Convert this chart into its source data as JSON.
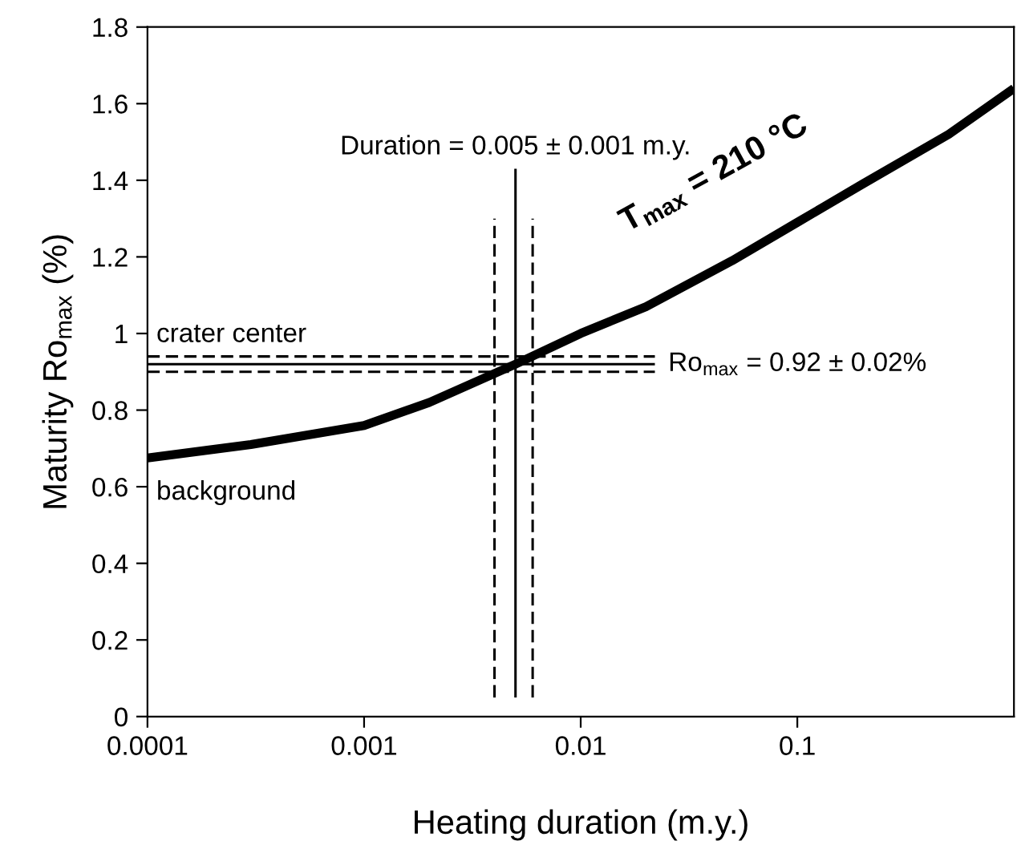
{
  "chart_data": {
    "type": "line",
    "xlabel": "Heating duration (m.y.)",
    "ylabel": "Maturity Ro$_{max}$ (%)",
    "log": "x",
    "xlim": [
      0.0001,
      1
    ],
    "xticks": [
      0.0001,
      0.001,
      0.01,
      0.1
    ],
    "ylim": [
      0,
      1.8
    ],
    "yticks": [
      0,
      0.2,
      0.4,
      0.6,
      0.8,
      1,
      1.2,
      1.4,
      1.6,
      1.8
    ],
    "grid": false,
    "marker": "none",
    "series": [
      {
        "color": "#000000",
        "line_style": "solid",
        "x": [
          0.0001,
          0.0003,
          0.001,
          0.002,
          0.005,
          0.01,
          0.02,
          0.05,
          0.1,
          0.2,
          0.5,
          1
        ],
        "values": [
          0.675,
          0.71,
          0.76,
          0.82,
          0.92,
          1.0,
          1.07,
          1.19,
          1.29,
          1.39,
          1.52,
          1.64
        ]
      },
      {
        "color": "#000000",
        "line_style": "dashed",
        "x": [
          0.004,
          0.004
        ],
        "values": [
          0.05,
          1.3
        ]
      },
      {
        "color": "#000000",
        "line_style": "solid",
        "x": [
          0.005,
          0.005
        ],
        "values": [
          0.05,
          1.43
        ]
      },
      {
        "color": "#000000",
        "line_style": "dashed",
        "x": [
          0.006,
          0.006
        ],
        "values": [
          0.05,
          1.3
        ]
      },
      {
        "color": "#000000",
        "line_style": "dashed",
        "x": [
          0.0001,
          0.022
        ],
        "values": [
          0.94,
          0.94
        ]
      },
      {
        "color": "#000000",
        "line_style": "solid",
        "x": [
          0.0001,
          0.022
        ],
        "values": [
          0.92,
          0.92
        ]
      },
      {
        "color": "#000000",
        "line_style": "dashed",
        "x": [
          0.0001,
          0.022
        ],
        "values": [
          0.9,
          0.9
        ]
      }
    ],
    "annotations": [
      {
        "text": "crater center",
        "x": 0.0001,
        "y": 0.94
      },
      {
        "text": "background",
        "x": 0.0001,
        "y": 0.675
      },
      {
        "text": "Duration = 0.005 ± 0.001 m.y.",
        "x": 0.005,
        "y": 1.43
      },
      {
        "text": "Ro$_{max}$ = 0.92 ± 0.02%",
        "x": 0.022,
        "y": 0.92
      },
      {
        "text": "T$_{max}$ = 210 °C",
        "x": 0.05,
        "y": 1.19
      }
    ]
  }
}
